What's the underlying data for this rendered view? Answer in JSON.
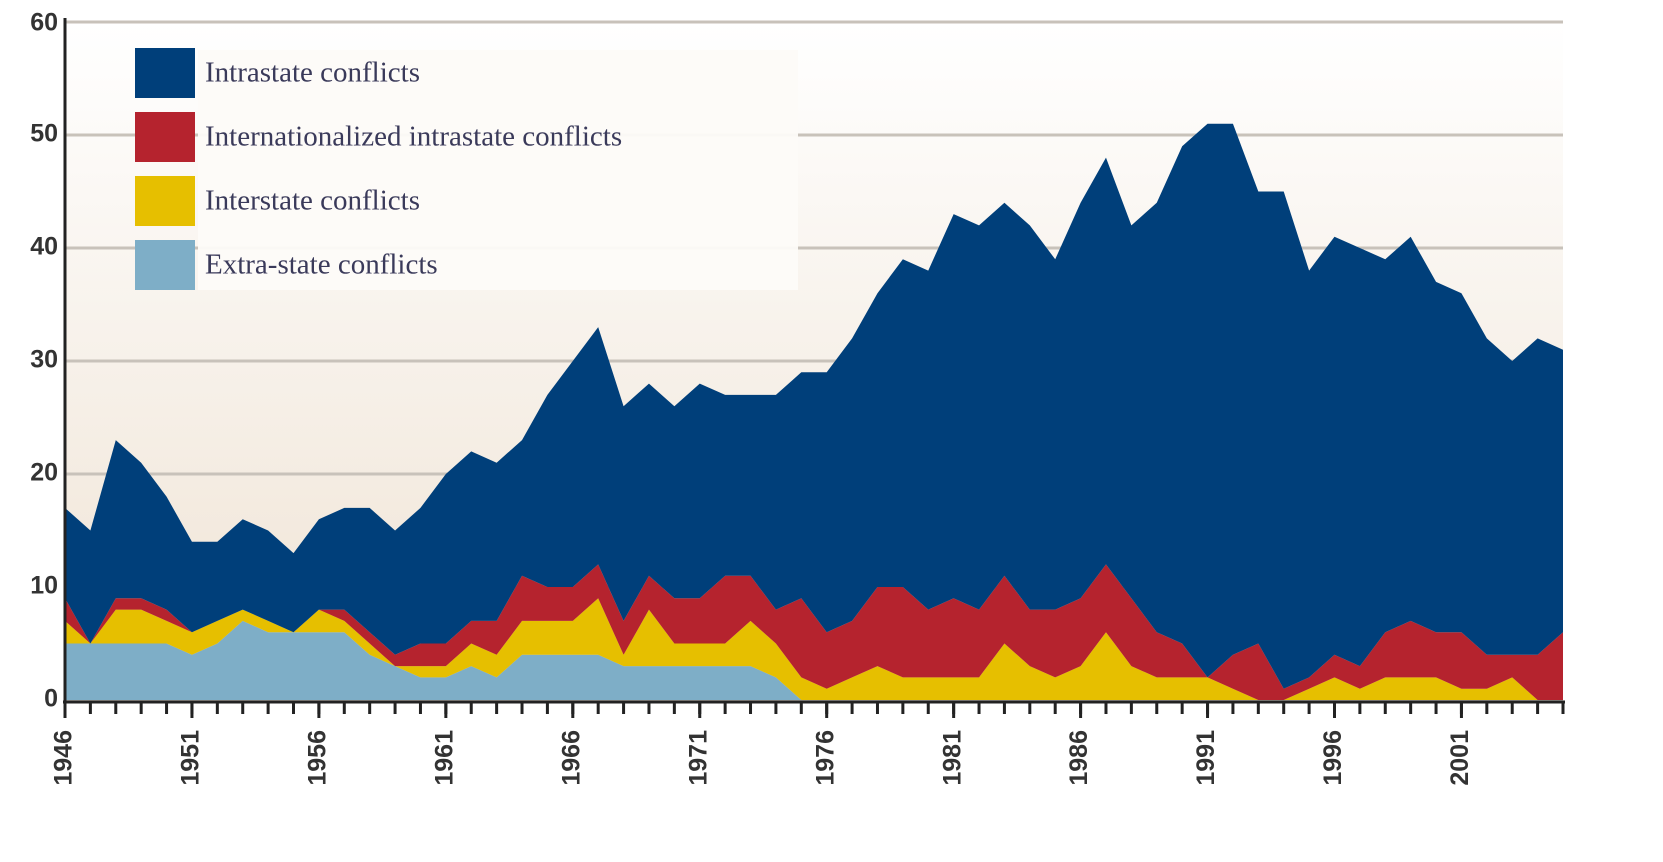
{
  "chart_data": {
    "type": "stacked_area",
    "x": [
      1946,
      1947,
      1948,
      1949,
      1950,
      1951,
      1952,
      1953,
      1954,
      1955,
      1956,
      1957,
      1958,
      1959,
      1960,
      1961,
      1962,
      1963,
      1964,
      1965,
      1966,
      1967,
      1968,
      1969,
      1970,
      1971,
      1972,
      1973,
      1974,
      1975,
      1976,
      1977,
      1978,
      1979,
      1980,
      1981,
      1982,
      1983,
      1984,
      1985,
      1986,
      1987,
      1988,
      1989,
      1990,
      1991,
      1992,
      1993,
      1994,
      1995,
      1996,
      1997,
      1998,
      1999,
      2000,
      2001,
      2002,
      2003,
      2004,
      2005
    ],
    "series": [
      {
        "name": "Intrastate conflicts",
        "color": "#003f7a",
        "values": [
          8,
          10,
          14,
          12,
          10,
          8,
          7,
          8,
          8,
          7,
          8,
          9,
          11,
          11,
          12,
          15,
          15,
          14,
          12,
          17,
          20,
          21,
          19,
          17,
          17,
          19,
          16,
          16,
          19,
          20,
          23,
          25,
          26,
          29,
          30,
          34,
          34,
          33,
          34,
          31,
          35,
          36,
          33,
          38,
          44,
          49,
          47,
          40,
          44,
          36,
          37,
          37,
          33,
          34,
          31,
          30,
          28,
          26,
          28,
          25
        ]
      },
      {
        "name": "Internationalized intrastate conflicts",
        "color": "#b5232e",
        "values": [
          2,
          0,
          1,
          1,
          1,
          0,
          0,
          0,
          0,
          0,
          0,
          1,
          1,
          1,
          2,
          2,
          2,
          3,
          4,
          3,
          3,
          3,
          3,
          3,
          4,
          4,
          6,
          4,
          3,
          7,
          5,
          5,
          7,
          8,
          6,
          7,
          6,
          6,
          5,
          6,
          6,
          6,
          6,
          4,
          3,
          0,
          3,
          5,
          1,
          1,
          2,
          2,
          4,
          5,
          4,
          5,
          3,
          2,
          4,
          6
        ]
      },
      {
        "name": "Interstate conflicts",
        "color": "#e6bf00",
        "values": [
          2,
          0,
          3,
          3,
          2,
          2,
          2,
          1,
          1,
          0,
          2,
          1,
          1,
          0,
          1,
          1,
          2,
          2,
          3,
          3,
          3,
          5,
          1,
          5,
          2,
          2,
          2,
          4,
          3,
          2,
          1,
          2,
          3,
          2,
          2,
          2,
          2,
          5,
          3,
          2,
          3,
          6,
          3,
          2,
          2,
          2,
          1,
          0,
          0,
          1,
          2,
          1,
          2,
          2,
          2,
          1,
          1,
          2,
          0,
          0
        ]
      },
      {
        "name": "Extra-state conflicts",
        "color": "#7eaec7",
        "values": [
          5,
          5,
          5,
          5,
          5,
          4,
          5,
          7,
          6,
          6,
          6,
          6,
          4,
          3,
          2,
          2,
          3,
          2,
          4,
          4,
          4,
          4,
          3,
          3,
          3,
          3,
          3,
          3,
          2,
          0,
          0,
          0,
          0,
          0,
          0,
          0,
          0,
          0,
          0,
          0,
          0,
          0,
          0,
          0,
          0,
          0,
          0,
          0,
          0,
          0,
          0,
          0,
          0,
          0,
          0,
          0,
          0,
          0,
          0,
          0
        ]
      }
    ],
    "xlim": [
      1946,
      2005
    ],
    "xticks": [
      1946,
      1951,
      1956,
      1961,
      1966,
      1971,
      1976,
      1981,
      1986,
      1991,
      1996,
      2001
    ],
    "ylim": [
      0,
      60
    ],
    "yticks": [
      0,
      10,
      20,
      30,
      40,
      50,
      60
    ],
    "grid": true
  }
}
